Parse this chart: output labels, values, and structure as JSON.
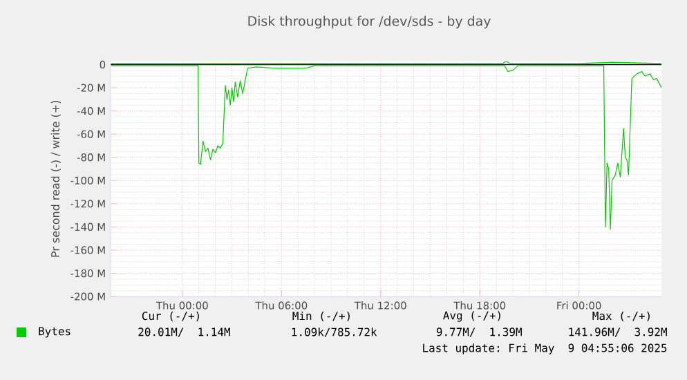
{
  "chart_data": {
    "type": "line",
    "title": "Disk throughput for /dev/sds - by day",
    "ylabel": "Pr second read (-) / write (+)",
    "xlim": [
      "2025-05-07T19:40",
      "2025-05-09T05:00"
    ],
    "xticks": [
      {
        "value": "2025-05-08T00:00",
        "label": "Thu 00:00"
      },
      {
        "value": "2025-05-08T06:00",
        "label": "Thu 06:00"
      },
      {
        "value": "2025-05-08T12:00",
        "label": "Thu 12:00"
      },
      {
        "value": "2025-05-08T18:00",
        "label": "Thu 18:00"
      },
      {
        "value": "2025-05-09T00:00",
        "label": "Fri 00:00"
      }
    ],
    "ylim": [
      -200,
      3
    ],
    "yticks": [
      {
        "value": 0,
        "label": "0"
      },
      {
        "value": -20,
        "label": "-20 M"
      },
      {
        "value": -40,
        "label": "-40 M"
      },
      {
        "value": -60,
        "label": "-60 M"
      },
      {
        "value": -80,
        "label": "-80 M"
      },
      {
        "value": -100,
        "label": "-100 M"
      },
      {
        "value": -120,
        "label": "-120 M"
      },
      {
        "value": -140,
        "label": "-140 M"
      },
      {
        "value": -160,
        "label": "-160 M"
      },
      {
        "value": -180,
        "label": "-180 M"
      },
      {
        "value": -200,
        "label": "-200 M"
      }
    ],
    "grid": true,
    "legend": "bottom left",
    "ref_lines": [
      {
        "axis": "y",
        "value": 0,
        "color": "#000000"
      }
    ],
    "series": [
      {
        "name": "Bytes",
        "color": "#00cc00",
        "x": [
          "2025-05-07T19:42",
          "2025-05-07T21:00",
          "2025-05-07T22:00",
          "2025-05-07T23:00",
          "2025-05-08T00:00",
          "2025-05-08T00:48",
          "2025-05-08T00:57",
          "2025-05-08T01:00",
          "2025-05-08T01:06",
          "2025-05-08T01:15",
          "2025-05-08T01:24",
          "2025-05-08T01:33",
          "2025-05-08T01:42",
          "2025-05-08T01:51",
          "2025-05-08T02:00",
          "2025-05-08T02:09",
          "2025-05-08T02:18",
          "2025-05-08T02:27",
          "2025-05-08T02:36",
          "2025-05-08T02:42",
          "2025-05-08T02:48",
          "2025-05-08T02:54",
          "2025-05-08T03:00",
          "2025-05-08T03:06",
          "2025-05-08T03:12",
          "2025-05-08T03:21",
          "2025-05-08T03:30",
          "2025-05-08T03:39",
          "2025-05-08T03:48",
          "2025-05-08T03:57",
          "2025-05-08T04:30",
          "2025-05-08T05:30",
          "2025-05-08T06:30",
          "2025-05-08T07:30",
          "2025-05-08T08:00",
          "2025-05-08T12:00",
          "2025-05-08T14:00",
          "2025-05-08T17:00",
          "2025-05-08T19:30",
          "2025-05-08T19:42",
          "2025-05-08T20:00",
          "2025-05-08T20:18",
          "2025-05-09T00:00",
          "2025-05-09T01:30",
          "2025-05-09T01:36",
          "2025-05-09T01:42",
          "2025-05-09T01:48",
          "2025-05-09T01:54",
          "2025-05-09T02:00",
          "2025-05-09T02:12",
          "2025-05-09T02:21",
          "2025-05-09T02:30",
          "2025-05-09T02:42",
          "2025-05-09T02:48",
          "2025-05-09T02:54",
          "2025-05-09T03:00",
          "2025-05-09T03:12",
          "2025-05-09T03:30",
          "2025-05-09T03:48",
          "2025-05-09T04:00",
          "2025-05-09T04:18",
          "2025-05-09T04:30",
          "2025-05-09T04:42",
          "2025-05-09T05:00"
        ],
        "values": [
          -1,
          -1,
          -1,
          -1,
          -1,
          -1,
          -1,
          -85,
          -86,
          -66,
          -75,
          -72,
          -82,
          -73,
          -76,
          -70,
          -72,
          -68,
          -18,
          -30,
          -22,
          -35,
          -20,
          -32,
          -15,
          -28,
          -14,
          -25,
          -14,
          -3,
          -2,
          -3,
          -3,
          -3,
          -1,
          -1,
          -1,
          -1,
          -1,
          -6,
          -5,
          -1,
          -1,
          -1,
          -140,
          -85,
          -90,
          -142,
          -100,
          -95,
          -85,
          -97,
          -55,
          -80,
          -82,
          -95,
          -12,
          -8,
          -6,
          -10,
          -8,
          -13,
          -12,
          -20
        ]
      },
      {
        "color": "#00cc00",
        "x": [
          "2025-05-07T19:42",
          "2025-05-08T00:00",
          "2025-05-08T05:00",
          "2025-05-08T10:00",
          "2025-05-08T19:24",
          "2025-05-08T19:36",
          "2025-05-08T19:48",
          "2025-05-09T00:00",
          "2025-05-09T02:00",
          "2025-05-09T05:00"
        ],
        "values": [
          1,
          1,
          1,
          1,
          1,
          3,
          1,
          1,
          2,
          1
        ]
      }
    ],
    "annotations": [
      "Cur (-/+)",
      "Min (-/+)",
      "Avg (-/+)",
      "Max (-/+)",
      "20.01M/  1.14M",
      "1.09k/785.72k",
      "9.77M/  1.39M",
      "141.96M/  3.92M",
      "Last update: Fri May  9 04:55:06 2025"
    ]
  }
}
